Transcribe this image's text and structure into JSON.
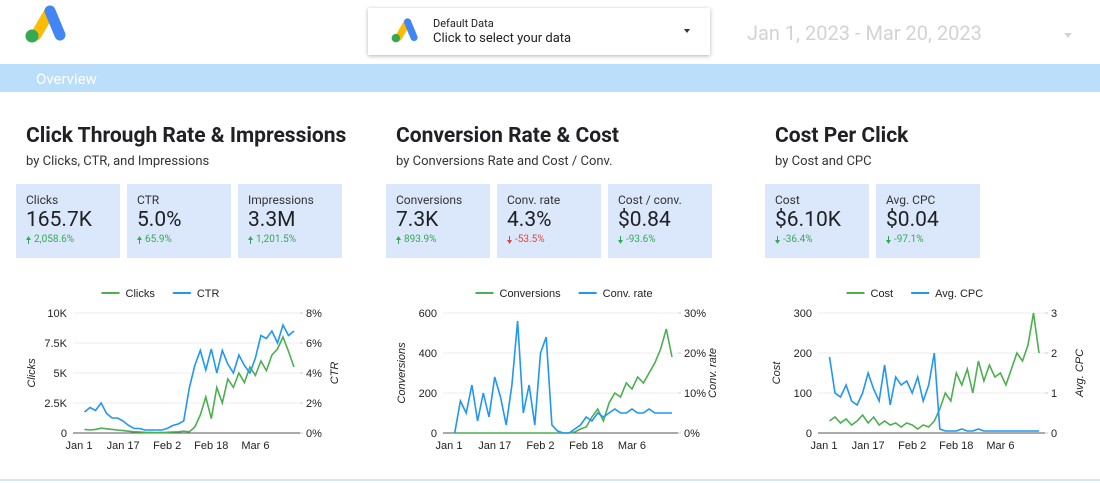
{
  "header": {
    "source_title": "Default Data",
    "source_hint": "Click to select your data",
    "date_range": "Jan 1, 2023 - Mar 20, 2023",
    "tab": "Overview"
  },
  "sections": [
    {
      "scorecards": [
        {
          "label": "Clicks",
          "value": "165.7K",
          "delta": "2,058.6%",
          "color": "#34a853"
        },
        {
          "label": "CTR",
          "value": "5.0%",
          "delta": "65.9%",
          "color": "#34a853"
        },
        {
          "label": "Impressions",
          "value": "3.3M",
          "delta": "1,201.5%",
          "color": "#34a853"
        }
      ]
    },
    {
      "scorecards": [
        {
          "label": "Conversions",
          "value": "7.3K",
          "delta": "893.9%",
          "color": "#34a853"
        },
        {
          "label": "Conv. rate",
          "value": "4.3%",
          "delta": "-53.5%",
          "color": "#ea4335"
        },
        {
          "label": "Cost / conv.",
          "value": "$0.84",
          "delta": "-93.6%",
          "color": "#34a853"
        }
      ]
    },
    {
      "scorecards": [
        {
          "label": "Cost",
          "value": "$6.10K",
          "delta": "-36.4%",
          "color": "#34a853"
        },
        {
          "label": "Avg. CPC",
          "value": "$0.04",
          "delta": "-97.1%",
          "color": "#34a853"
        }
      ]
    }
  ],
  "chart_data": [
    {
      "type": "line",
      "title": "Click Through Rate & Impressions",
      "subtitle": "by Clicks, CTR, and Impressions",
      "categories": [
        "Jan 1",
        null,
        null,
        null,
        null,
        null,
        null,
        null,
        "Jan 17",
        null,
        null,
        null,
        null,
        null,
        null,
        null,
        "Feb 2",
        null,
        null,
        null,
        null,
        null,
        null,
        null,
        "Feb 18",
        null,
        null,
        null,
        null,
        null,
        null,
        null,
        "Mar 6",
        null,
        null,
        null,
        null,
        null,
        null,
        null
      ],
      "ylabel": "Clicks",
      "y2label": "CTR",
      "grid": true,
      "ylim": [
        0,
        10000
      ],
      "yticks": [
        0,
        {
          "value": 2500,
          "label": "2.5K"
        },
        {
          "value": 5000,
          "label": "5K"
        },
        {
          "value": 7500,
          "label": "7.5K"
        },
        {
          "value": 10000,
          "label": "10K"
        }
      ],
      "y2lim": [
        0,
        8
      ],
      "y2ticks": [
        {
          "value": 0,
          "label": "0%"
        },
        {
          "value": 2,
          "label": "2%"
        },
        {
          "value": 4,
          "label": "4%"
        },
        {
          "value": 6,
          "label": "6%"
        },
        {
          "value": 8,
          "label": "8%"
        }
      ],
      "series": [
        {
          "name": "Clicks",
          "color": "#4caf50",
          "values": [
            null,
            300,
            250,
            300,
            400,
            350,
            300,
            250,
            200,
            150,
            100,
            80,
            60,
            50,
            40,
            50,
            60,
            80,
            100,
            150,
            100,
            500,
            1500,
            3000,
            1200,
            3800,
            2500,
            4500,
            3800,
            5000,
            4200,
            5500,
            4800,
            6000,
            5200,
            6500,
            7000,
            8000,
            6800,
            5500
          ]
        },
        {
          "name": "CTR",
          "color": "#2196f3",
          "axis": "y2",
          "values": [
            null,
            1.4,
            1.7,
            1.5,
            2.0,
            1.3,
            1.0,
            1.0,
            0.8,
            0.5,
            0.3,
            0.3,
            0.2,
            0.2,
            0.2,
            0.2,
            0.3,
            0.5,
            0.6,
            0.8,
            3.0,
            4.5,
            5.5,
            4.2,
            5.6,
            4.0,
            5.5,
            4.6,
            4.0,
            5.2,
            4.5,
            4.0,
            5.0,
            6.5,
            6.3,
            6.8,
            6.0,
            7.2,
            6.5,
            6.8
          ]
        }
      ]
    },
    {
      "type": "line",
      "title": "Conversion Rate & Cost",
      "subtitle": "by Conversions Rate and Cost / Conv.",
      "categories": [
        "Jan 1",
        null,
        null,
        null,
        null,
        null,
        null,
        null,
        "Jan 17",
        null,
        null,
        null,
        null,
        null,
        null,
        null,
        "Feb 2",
        null,
        null,
        null,
        null,
        null,
        null,
        null,
        "Feb 18",
        null,
        null,
        null,
        null,
        null,
        null,
        null,
        "Mar 6",
        null,
        null,
        null,
        null,
        null,
        null,
        null
      ],
      "ylabel": "Conversions",
      "y2label": "Conv. rate",
      "grid": true,
      "ylim": [
        0,
        600
      ],
      "yticks": [
        0,
        200,
        400,
        600
      ],
      "y2lim": [
        0,
        30
      ],
      "y2ticks": [
        {
          "value": 0,
          "label": "0%"
        },
        {
          "value": 10,
          "label": "10%"
        },
        {
          "value": 20,
          "label": "20%"
        },
        {
          "value": 30,
          "label": "30%"
        }
      ],
      "series": [
        {
          "name": "Conversions",
          "color": "#4caf50",
          "values": [
            null,
            0,
            0,
            0,
            0,
            0,
            0,
            0,
            0,
            0,
            0,
            0,
            0,
            0,
            0,
            0,
            0,
            0,
            0,
            0,
            0,
            0,
            5,
            20,
            30,
            80,
            120,
            60,
            150,
            200,
            180,
            250,
            220,
            280,
            250,
            300,
            350,
            420,
            520,
            380
          ]
        },
        {
          "name": "Conv. rate",
          "color": "#2196f3",
          "axis": "y2",
          "values": [
            null,
            0,
            8,
            5,
            12,
            3,
            10,
            4,
            14,
            9,
            2,
            12,
            28,
            5,
            12,
            2,
            20,
            24,
            2,
            0.5,
            0,
            0,
            1,
            2,
            4,
            3,
            5,
            4,
            5,
            6,
            5,
            5,
            6,
            5,
            5,
            6,
            5,
            5,
            5,
            5
          ]
        }
      ]
    },
    {
      "type": "line",
      "title": "Cost Per Click",
      "subtitle": "by Cost and CPC",
      "categories": [
        "Jan 1",
        null,
        null,
        null,
        null,
        null,
        null,
        null,
        "Jan 17",
        null,
        null,
        null,
        null,
        null,
        null,
        null,
        "Feb 2",
        null,
        null,
        null,
        null,
        null,
        null,
        null,
        "Feb 18",
        null,
        null,
        null,
        null,
        null,
        null,
        null,
        "Mar 6",
        null,
        null,
        null,
        null,
        null,
        null,
        null
      ],
      "ylabel": "Cost",
      "y2label": "Avg. CPC",
      "grid": true,
      "ylim": [
        0,
        300
      ],
      "yticks": [
        0,
        100,
        200,
        300
      ],
      "y2lim": [
        0,
        3
      ],
      "y2ticks": [
        0,
        1,
        2,
        3
      ],
      "series": [
        {
          "name": "Cost",
          "color": "#4caf50",
          "values": [
            null,
            30,
            40,
            25,
            35,
            20,
            30,
            45,
            25,
            40,
            20,
            30,
            20,
            25,
            15,
            25,
            20,
            10,
            20,
            15,
            30,
            60,
            100,
            80,
            150,
            120,
            160,
            100,
            180,
            130,
            170,
            140,
            150,
            120,
            160,
            200,
            180,
            220,
            300,
            200
          ]
        },
        {
          "name": "Avg. CPC",
          "color": "#2196f3",
          "axis": "y2",
          "values": [
            null,
            1.9,
            1.0,
            0.9,
            1.2,
            0.8,
            0.7,
            1.0,
            1.5,
            1.1,
            0.8,
            1.7,
            0.7,
            1.4,
            1.2,
            1.3,
            1.0,
            1.4,
            0.8,
            1.2,
            2.0,
            0.1,
            0.05,
            0.05,
            0.05,
            0.1,
            0.05,
            0.05,
            0.1,
            0.05,
            0.05,
            0.05,
            0.05,
            0.05,
            0.05,
            0.05,
            0.05,
            0.05,
            0.05,
            0.05
          ]
        }
      ]
    }
  ]
}
